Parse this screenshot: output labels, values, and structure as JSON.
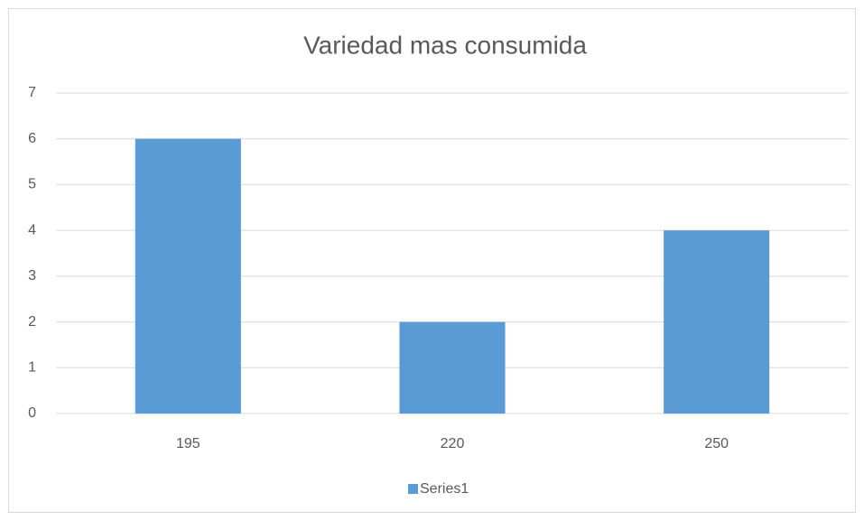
{
  "chart_data": {
    "type": "bar",
    "title": "Variedad mas consumida",
    "categories": [
      "195",
      "220",
      "250"
    ],
    "series": [
      {
        "name": "Series1",
        "color": "#5b9bd5",
        "values": [
          6,
          2,
          4
        ]
      }
    ],
    "ylim": [
      0,
      7
    ],
    "yticks": [
      0,
      1,
      2,
      3,
      4,
      5,
      6,
      7
    ],
    "grid": true,
    "legend": "bottom"
  }
}
